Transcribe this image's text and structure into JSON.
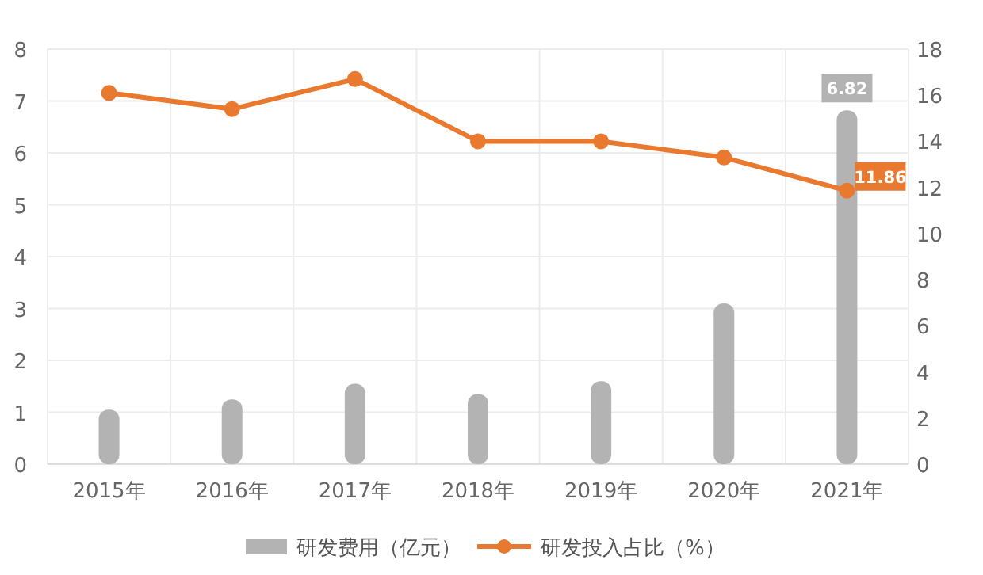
{
  "chart_data": {
    "type": "bar",
    "categories": [
      "2015年",
      "2016年",
      "2017年",
      "2018年",
      "2019年",
      "2020年",
      "2021年"
    ],
    "series": [
      {
        "name": "研发费用（亿元）",
        "color": "#b3b3b3",
        "values": [
          1.05,
          1.25,
          1.55,
          1.35,
          1.6,
          3.1,
          6.82
        ],
        "value_labels": [
          null,
          null,
          null,
          null,
          null,
          null,
          "6.82"
        ]
      },
      {
        "name": "研发投入占比（%）",
        "type": "line",
        "axis": "y2",
        "color": "#e8792e",
        "marker": "circle",
        "values": [
          16.1,
          15.4,
          16.7,
          14.0,
          14.0,
          13.3,
          11.86
        ],
        "value_labels": [
          null,
          null,
          null,
          null,
          null,
          null,
          "11.86"
        ]
      }
    ],
    "ylim": [
      0,
      8
    ],
    "yticks": [
      0,
      1,
      2,
      3,
      4,
      5,
      6,
      7,
      8
    ],
    "y2lim": [
      0,
      18
    ],
    "y2ticks": [
      0,
      2,
      4,
      6,
      8,
      10,
      12,
      14,
      16,
      18
    ],
    "grid": true,
    "legend": "bottom"
  }
}
